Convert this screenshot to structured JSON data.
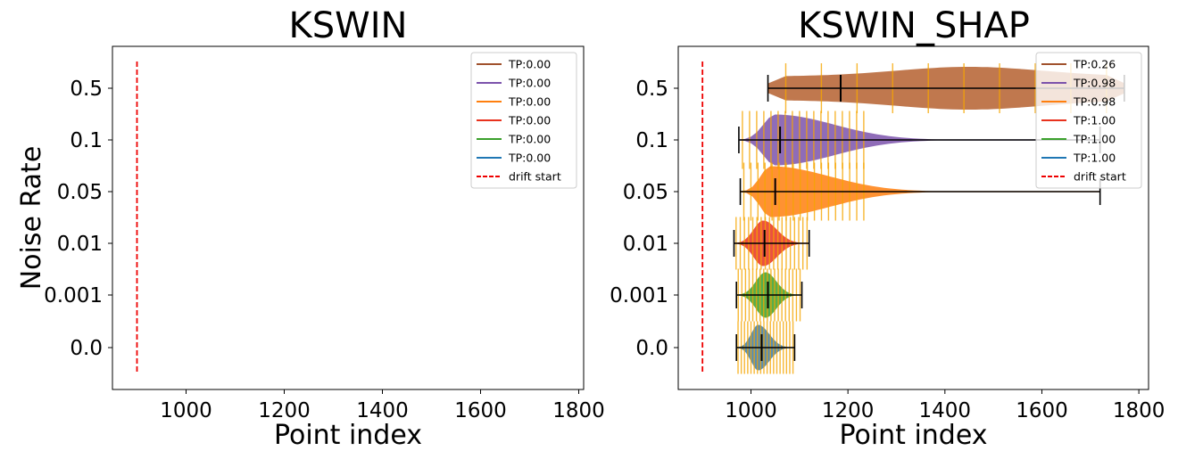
{
  "chart_data": [
    {
      "type": "violin",
      "title": "KSWIN",
      "xlabel": "Point index",
      "ylabel": "Noise Rate",
      "xlim": [
        850,
        1810
      ],
      "x_ticks": [
        1000,
        1200,
        1400,
        1600,
        1800
      ],
      "y_categories": [
        "0.0",
        "0.001",
        "0.01",
        "0.05",
        "0.1",
        "0.5"
      ],
      "drift_start": 900,
      "legend_position": "top-right",
      "series": [],
      "legend": [
        {
          "label": "TP:0.00",
          "color": "#a0522d",
          "style": "solid"
        },
        {
          "label": "TP:0.00",
          "color": "#7b52ab",
          "style": "solid"
        },
        {
          "label": "TP:0.00",
          "color": "#ff7f0e",
          "style": "solid"
        },
        {
          "label": "TP:0.00",
          "color": "#e8321e",
          "style": "solid"
        },
        {
          "label": "TP:0.00",
          "color": "#3aa02c",
          "style": "solid"
        },
        {
          "label": "TP:0.00",
          "color": "#1f77b4",
          "style": "solid"
        },
        {
          "label": "drift start",
          "color": "#ee0000",
          "style": "dashed"
        }
      ]
    },
    {
      "type": "violin",
      "title": "KSWIN_SHAP",
      "xlabel": "Point index",
      "ylabel": "",
      "xlim": [
        850,
        1820
      ],
      "x_ticks": [
        1000,
        1200,
        1400,
        1600,
        1800
      ],
      "y_categories": [
        "0.0",
        "0.001",
        "0.01",
        "0.05",
        "0.1",
        "0.5"
      ],
      "drift_start": 900,
      "legend_position": "top-right",
      "series": [
        {
          "category": "0.5",
          "color": "#b5602f",
          "min": 1035,
          "max": 1770,
          "mean": 1185,
          "peak_at": 1450,
          "width_scale": 0.8
        },
        {
          "category": "0.1",
          "color": "#7b52ab",
          "min": 975,
          "max": 1720,
          "mean": 1060,
          "peak_at": 1050,
          "width_scale": 0.95
        },
        {
          "category": "0.05",
          "color": "#ff7f0e",
          "min": 978,
          "max": 1720,
          "mean": 1050,
          "peak_at": 1040,
          "width_scale": 0.95
        },
        {
          "category": "0.01",
          "color": "#e8321e",
          "min": 965,
          "max": 1120,
          "mean": 1028,
          "peak_at": 1025,
          "width_scale": 0.85
        },
        {
          "category": "0.001",
          "color": "#3aa02c",
          "min": 970,
          "max": 1105,
          "mean": 1035,
          "peak_at": 1030,
          "width_scale": 0.85
        },
        {
          "category": "0.0",
          "color": "#3a7aa8",
          "min": 970,
          "max": 1090,
          "mean": 1022,
          "peak_at": 1015,
          "width_scale": 0.85
        }
      ],
      "legend": [
        {
          "label": "TP:0.26",
          "color": "#a0522d",
          "style": "solid"
        },
        {
          "label": "TP:0.98",
          "color": "#7b52ab",
          "style": "solid"
        },
        {
          "label": "TP:0.98",
          "color": "#ff7f0e",
          "style": "solid"
        },
        {
          "label": "TP:1.00",
          "color": "#e8321e",
          "style": "solid"
        },
        {
          "label": "TP:1.00",
          "color": "#3aa02c",
          "style": "solid"
        },
        {
          "label": "TP:1.00",
          "color": "#1f77b4",
          "style": "solid"
        },
        {
          "label": "drift start",
          "color": "#ee0000",
          "style": "dashed"
        }
      ]
    }
  ]
}
